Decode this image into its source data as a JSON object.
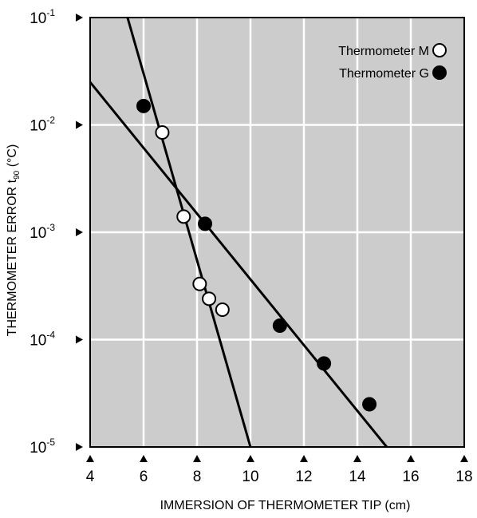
{
  "chart_data": {
    "type": "scatter",
    "title": "",
    "xlabel": "IMMERSION OF THERMOMETER TIP (cm)",
    "ylabel_main": "THERMOMETER ERROR t",
    "ylabel_sub": "90",
    "ylabel_tail": " (°C)",
    "x_scale": "linear",
    "y_scale": "log",
    "xlim": [
      4,
      18
    ],
    "ylim": [
      1e-05,
      0.1
    ],
    "x_ticks": [
      4,
      6,
      8,
      10,
      12,
      14,
      16,
      18
    ],
    "y_ticks": [
      {
        "value": 0.1,
        "base": "10",
        "exp": "-1"
      },
      {
        "value": 0.01,
        "base": "10",
        "exp": "-2"
      },
      {
        "value": 0.001,
        "base": "10",
        "exp": "-3"
      },
      {
        "value": 0.0001,
        "base": "10",
        "exp": "-4"
      },
      {
        "value": 1e-05,
        "base": "10",
        "exp": "-5"
      }
    ],
    "grid": true,
    "background": "#cccccc",
    "legend_position": "top-right",
    "series": [
      {
        "name": "Thermometer M",
        "marker": "open-circle",
        "points": [
          {
            "x": 6.7,
            "y": 0.0085
          },
          {
            "x": 7.5,
            "y": 0.0014
          },
          {
            "x": 8.1,
            "y": 0.00033
          },
          {
            "x": 8.45,
            "y": 0.00024
          },
          {
            "x": 8.95,
            "y": 0.00019
          }
        ],
        "fit_line": [
          {
            "x": 5.4,
            "y": 0.1
          },
          {
            "x": 10.0,
            "y": 1e-05
          }
        ]
      },
      {
        "name": "Thermometer G",
        "marker": "filled-circle",
        "points": [
          {
            "x": 6.0,
            "y": 0.015
          },
          {
            "x": 8.3,
            "y": 0.0012
          },
          {
            "x": 11.1,
            "y": 0.000135
          },
          {
            "x": 12.75,
            "y": 6e-05
          },
          {
            "x": 14.45,
            "y": 2.5e-05
          }
        ],
        "fit_line": [
          {
            "x": 4.0,
            "y": 0.025
          },
          {
            "x": 15.1,
            "y": 1e-05
          }
        ]
      }
    ]
  }
}
